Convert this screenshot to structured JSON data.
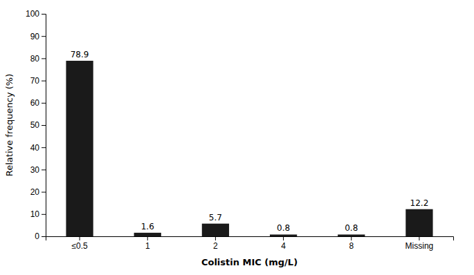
{
  "chart_data": {
    "type": "bar",
    "categories": [
      "≤0.5",
      "1",
      "2",
      "4",
      "8",
      "Missing"
    ],
    "values": [
      78.9,
      1.6,
      5.7,
      0.8,
      0.8,
      12.2
    ],
    "color": "#1a1a1a",
    "xlabel": "Colistin MIC (mg/L)",
    "ylabel": "Relative frequency (%)",
    "ylim": [
      0,
      100
    ],
    "yticks": [
      0,
      10,
      20,
      30,
      40,
      50,
      60,
      70,
      80,
      90,
      100
    ],
    "data_labels": true,
    "grid": false
  }
}
